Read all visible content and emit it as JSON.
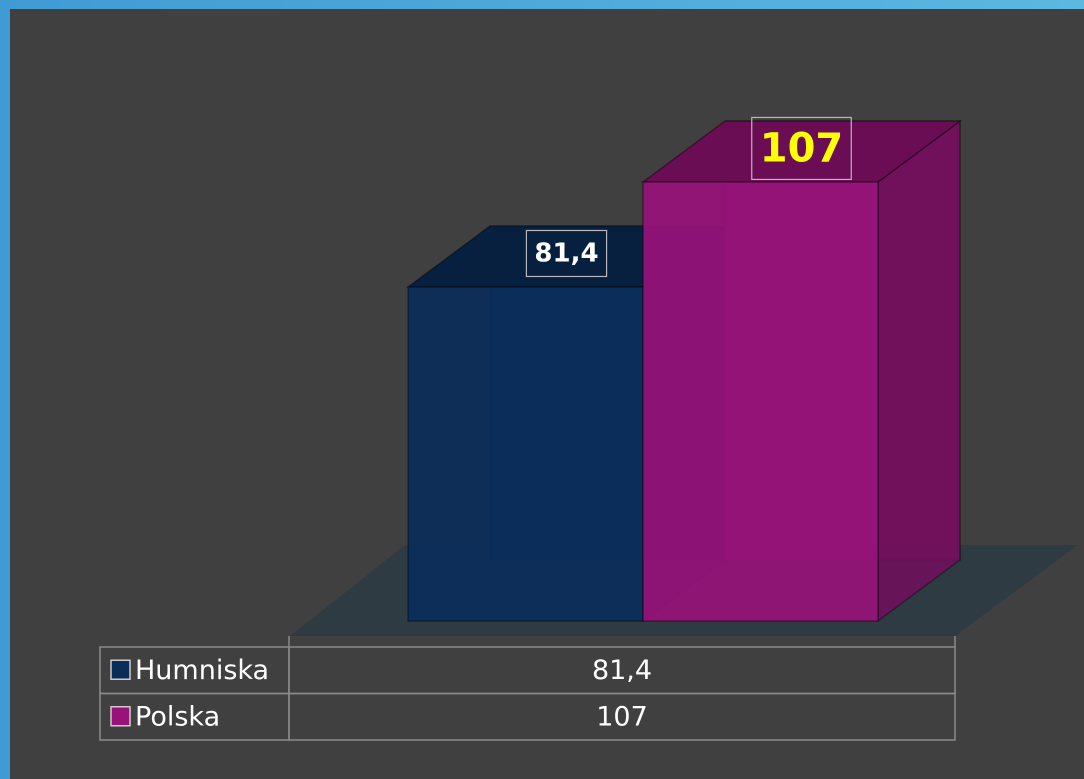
{
  "chart_data": {
    "type": "bar3d",
    "series": [
      {
        "name": "Humniska",
        "color": "#0a2d5a",
        "label_color": "#ffffff",
        "values": [
          81.4
        ],
        "value_labels": [
          "81,4"
        ]
      },
      {
        "name": "Polska",
        "color": "#98127a",
        "label_color": "#ffff00",
        "values": [
          107
        ],
        "value_labels": [
          "107"
        ]
      }
    ],
    "data_table": true
  }
}
